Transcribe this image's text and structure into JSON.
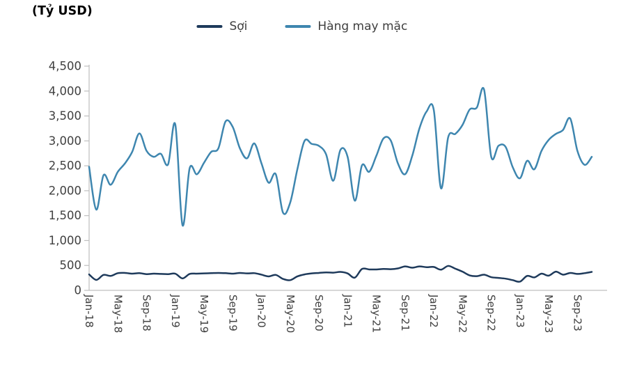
{
  "title": "(Tỷ USD)",
  "colors": {
    "soi": "#1E3A5B",
    "hang_may_mac": "#3E86AF",
    "axis": "#BFBFBF",
    "tick_text": "#404040"
  },
  "chart_data": {
    "type": "line",
    "title": "(Tỷ USD)",
    "xlabel": "",
    "ylabel": "(Tỷ USD)",
    "ylim": [
      0,
      4500
    ],
    "ytick_step": 500,
    "ytick_values": [
      0,
      500,
      1000,
      1500,
      2000,
      2500,
      3000,
      3500,
      4000,
      4500
    ],
    "ytick_labels": [
      "0",
      "500",
      "1,000",
      "1,500",
      "2,000",
      "2,500",
      "3,000",
      "3,500",
      "4,000",
      "4,500"
    ],
    "grid": false,
    "legend_position": "top",
    "x_label_every": 4,
    "x_labels": [
      "Jan-18",
      "May-18",
      "Sep-18",
      "Jan-19",
      "May-19",
      "Sep-19",
      "Jan-20",
      "May-20",
      "Sep-20",
      "Jan-21",
      "May-21",
      "Sep-21",
      "Jan-22",
      "May-22",
      "Sep-22",
      "Jan-23",
      "May-23",
      "Sep-23"
    ],
    "x_range_note": "monthly points Jan-2018 through Nov-2023, 71 points",
    "series": [
      {
        "name": "Sợi",
        "color": "#1E3A5B",
        "values": [
          320,
          210,
          310,
          290,
          345,
          350,
          335,
          345,
          325,
          335,
          330,
          325,
          335,
          240,
          330,
          335,
          340,
          345,
          350,
          345,
          335,
          350,
          340,
          345,
          315,
          280,
          310,
          230,
          205,
          280,
          320,
          340,
          350,
          360,
          355,
          370,
          340,
          255,
          430,
          420,
          420,
          430,
          425,
          440,
          480,
          455,
          480,
          465,
          470,
          415,
          490,
          435,
          375,
          300,
          285,
          315,
          265,
          250,
          235,
          205,
          175,
          290,
          260,
          335,
          295,
          375,
          315,
          350,
          330,
          345,
          370
        ]
      },
      {
        "name": "Hàng may mặc",
        "color": "#3E86AF",
        "values": [
          2480,
          1620,
          2310,
          2120,
          2380,
          2550,
          2780,
          3150,
          2800,
          2680,
          2740,
          2530,
          3330,
          1310,
          2450,
          2330,
          2560,
          2780,
          2850,
          3390,
          3280,
          2850,
          2650,
          2950,
          2550,
          2160,
          2330,
          1560,
          1760,
          2430,
          3000,
          2940,
          2900,
          2730,
          2200,
          2820,
          2680,
          1800,
          2510,
          2380,
          2700,
          3050,
          3010,
          2550,
          2330,
          2700,
          3250,
          3590,
          3620,
          2050,
          3070,
          3140,
          3320,
          3630,
          3670,
          4030,
          2680,
          2900,
          2880,
          2470,
          2250,
          2600,
          2430,
          2800,
          3020,
          3140,
          3220,
          3450,
          2800,
          2520,
          2680
        ]
      }
    ]
  }
}
